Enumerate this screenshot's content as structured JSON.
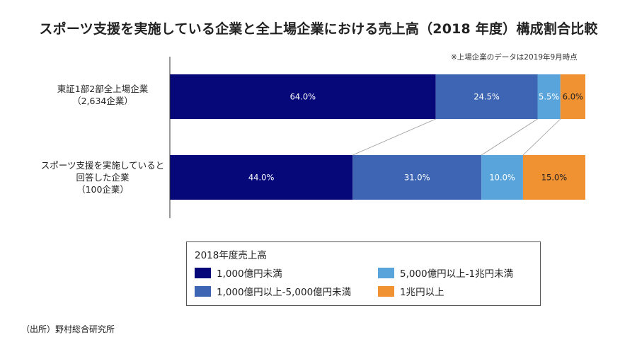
{
  "title": "スポーツ支援を実施している企業と全上場企業における売上高（2018 年度）構成割合比較",
  "note": "※上場企業のデータは2019年9月時点",
  "source": "（出所）野村総合研究所",
  "chart_data": {
    "type": "bar",
    "orientation": "horizontal",
    "stacked": "percent",
    "title": "スポーツ支援を実施している企業と全上場企業における売上高（2018 年度）構成割合比較",
    "categories": [
      [
        "東証1部2部全上場企業",
        "（2,634企業）"
      ],
      [
        "スポーツ支援を実施していると",
        "回答した企業",
        "（100企業）"
      ]
    ],
    "series": [
      {
        "name": "1,000億円未満",
        "color": "#06087a",
        "values": [
          64.0,
          44.0
        ],
        "labels": [
          "64.0%",
          "44.0%"
        ]
      },
      {
        "name": "1,000億円以上-5,000億円未満",
        "color": "#3e65b3",
        "values": [
          24.5,
          31.0
        ],
        "labels": [
          "24.5%",
          "31.0%"
        ]
      },
      {
        "name": "5,000億円以上-1兆円未満",
        "color": "#5aa4dc",
        "values": [
          5.5,
          10.0
        ],
        "labels": [
          "5.5%",
          "10.0%"
        ]
      },
      {
        "name": "1兆円以上",
        "color": "#f19232",
        "values": [
          6.0,
          15.0
        ],
        "labels": [
          "6.0%",
          "15.0%"
        ]
      }
    ],
    "xlim": [
      0,
      100
    ],
    "legend_title": "2018年度売上高",
    "legend_position": "bottom"
  }
}
